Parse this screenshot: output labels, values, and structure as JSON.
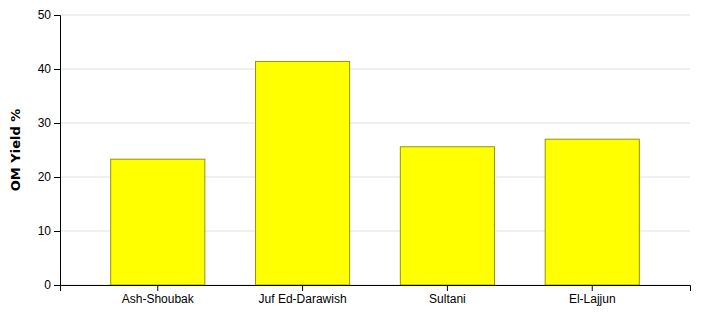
{
  "chart_data": {
    "type": "bar",
    "categories": [
      "Ash-Shoubak",
      "Juf Ed-Darawish",
      "Sultani",
      "El-Lajjun"
    ],
    "values": [
      23.3,
      41.4,
      25.6,
      27.0
    ],
    "color": "#FFFF00",
    "ylabel": "OM Yield %",
    "ylim": [
      0,
      50
    ],
    "yticks": [
      0,
      10,
      20,
      30,
      40,
      50
    ],
    "grid": true
  }
}
